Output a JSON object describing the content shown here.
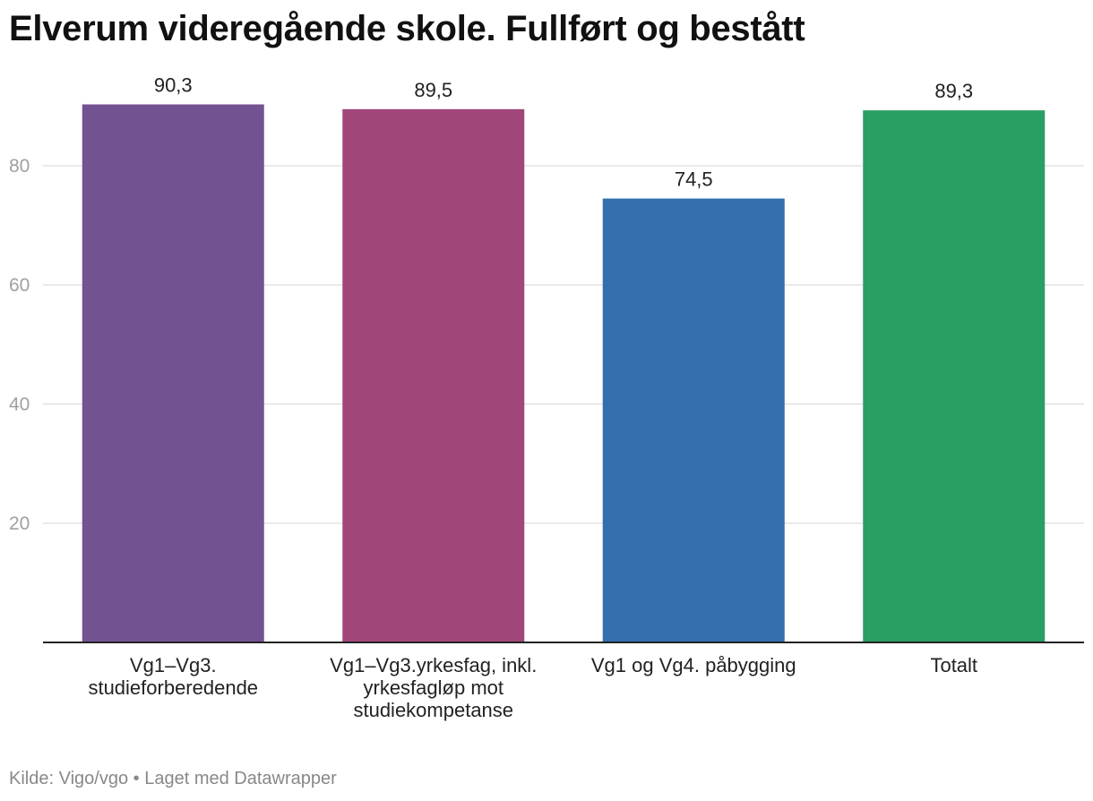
{
  "chart_data": {
    "type": "bar",
    "title": "Elverum videregående skole. Fullført og bestått",
    "categories": [
      [
        "Vg1–Vg3.",
        "studieforberedende"
      ],
      [
        "Vg1–Vg3.yrkesfag, inkl.",
        "yrkesfagløp mot",
        "studiekompetanse"
      ],
      [
        "Vg1 og Vg4. påbygging"
      ],
      [
        "Totalt"
      ]
    ],
    "values": [
      90.3,
      89.5,
      74.5,
      89.3
    ],
    "value_labels": [
      "90,3",
      "89,5",
      "74,5",
      "89,3"
    ],
    "colors": [
      "#735292",
      "#a04678",
      "#336ead",
      "#2a9e63"
    ],
    "yticks": [
      20,
      40,
      60,
      80
    ],
    "ylim": [
      0,
      100
    ],
    "grid": true,
    "xlabel": "",
    "ylabel": ""
  },
  "footer": {
    "source_label": "Kilde:",
    "source": "Vigo/vgo",
    "separator": "•",
    "credit": "Laget med Datawrapper"
  }
}
